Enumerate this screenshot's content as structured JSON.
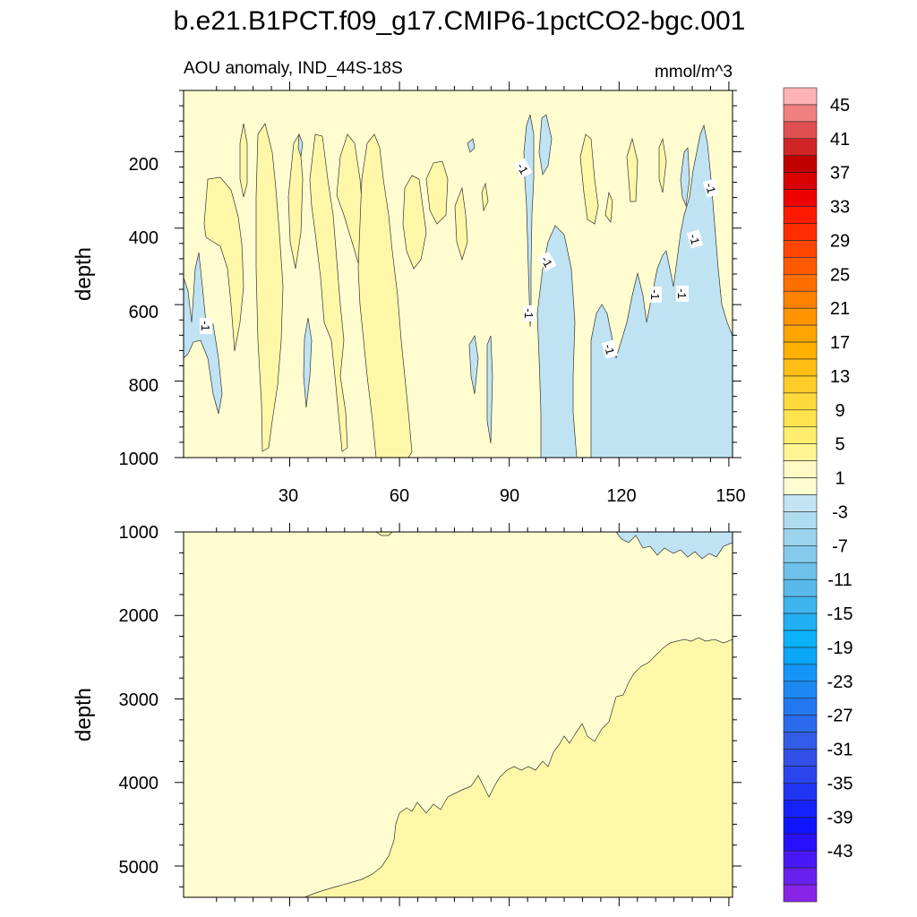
{
  "chart_data": {
    "type": "heatmap",
    "title": "b.e21.B1PCT.f09_g17.CMIP6-1pctCO2-bgc.001",
    "left_subtitle": "AOU anomaly, IND_44S-18S",
    "right_subtitle": "mmol/m^3",
    "x": {
      "range": [
        1,
        151
      ],
      "ticks": [
        30,
        60,
        90,
        120,
        150
      ],
      "tick_labels": [
        "30",
        "60",
        "90",
        "120",
        "150"
      ]
    },
    "upper_panel": {
      "ylabel": "depth",
      "yrange": [
        40,
        1000
      ],
      "inverted": true,
      "ticks": [
        200,
        400,
        600,
        800,
        1000
      ],
      "tick_labels": [
        "200",
        "400",
        "600",
        "800",
        "1000"
      ],
      "contour_labels": [
        "-1",
        "-1",
        "-1",
        "-1",
        "-1",
        "-1",
        "-1",
        "-1",
        "-1"
      ]
    },
    "lower_panel": {
      "ylabel": "depth",
      "yrange": [
        1000,
        5375
      ],
      "inverted": true,
      "ticks": [
        1000,
        2000,
        3000,
        4000,
        5000
      ],
      "tick_labels": [
        "1000",
        "2000",
        "3000",
        "4000",
        "5000"
      ]
    },
    "colorbar": {
      "labels": [
        "45",
        "41",
        "37",
        "33",
        "29",
        "25",
        "21",
        "17",
        "13",
        "9",
        "5",
        "1",
        "-3",
        "-7",
        "-11",
        "-15",
        "-19",
        "-23",
        "-27",
        "-31",
        "-35",
        "-39",
        "-43"
      ],
      "colors": [
        "#ffb3b3",
        "#f08080",
        "#e05050",
        "#d02424",
        "#c00000",
        "#d80000",
        "#ee0000",
        "#ff1a00",
        "#ff2d00",
        "#ff4600",
        "#ff5a00",
        "#ff6e00",
        "#ff8200",
        "#ff9400",
        "#ffa400",
        "#ffb000",
        "#ffbe14",
        "#ffcc28",
        "#ffda3c",
        "#ffe450",
        "#ffee6e",
        "#fff494",
        "#fffac4",
        "#fffdd0",
        "#c4e4f4",
        "#b0dcf0",
        "#9cd4ee",
        "#84caec",
        "#6ec2ea",
        "#58baea",
        "#3eb4ee",
        "#22b0f4",
        "#0cb2f8",
        "#0aa6f8",
        "#1496f8",
        "#1c88f4",
        "#2278f0",
        "#2a6aec",
        "#325ce8",
        "#3050e8",
        "#2a44ee",
        "#2034f4",
        "#1622fa",
        "#1014fc",
        "#2810ff",
        "#4818f4",
        "#6820ee",
        "#8824e8"
      ]
    }
  }
}
